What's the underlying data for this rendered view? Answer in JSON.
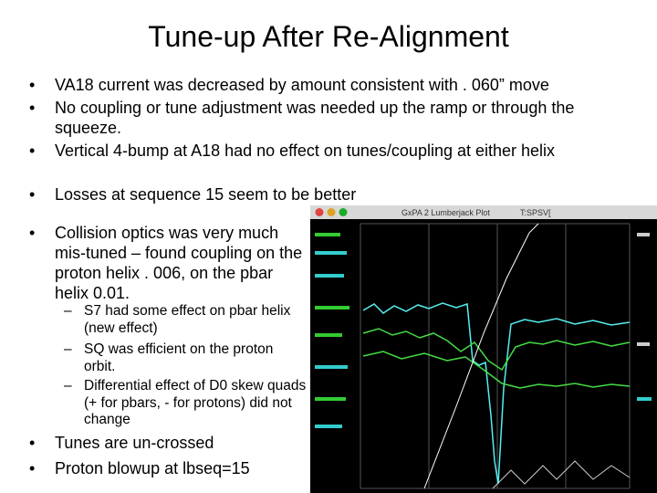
{
  "title": "Tune-up After Re-Alignment",
  "bullets_top": [
    "VA18 current was decreased by amount consistent with . 060” move",
    "No coupling or tune adjustment was needed up the ramp or through the squeeze.",
    "Vertical 4-bump at A18 had no effect on tunes/coupling at either helix",
    "Losses at sequence 15 seem to be better"
  ],
  "bullet_collision": "Collision optics was very much mis-tuned – found coupling on the proton helix . 006, on the pbar helix 0.01.",
  "sub_bullets": [
    "S7 had some effect on pbar helix (new effect)",
    "SQ was efficient on the proton orbit.",
    "Differential effect of D0 skew quads (+ for pbars, - for protons) did not change"
  ],
  "bullets_bottom": [
    "Tunes are un-crossed",
    "Proton blowup at lbseq=15"
  ],
  "screenshot": {
    "window_title": "GxPA 2 Lumberjack Plot",
    "tag": "T:SPSV["
  }
}
